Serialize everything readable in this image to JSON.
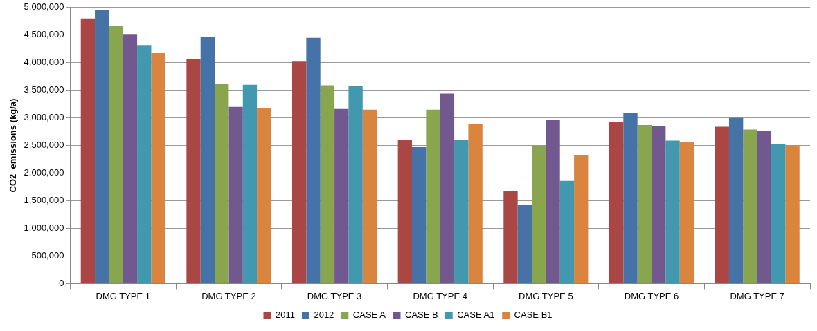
{
  "chart_data": {
    "type": "bar",
    "ylabel": "CO2  emissions (kg/a)",
    "categories": [
      "DMG TYPE 1",
      "DMG TYPE 2",
      "DMG TYPE 3",
      "DMG TYPE 4",
      "DMG TYPE 5",
      "DMG TYPE 6",
      "DMG TYPE 7"
    ],
    "series": [
      {
        "name": "2011",
        "color": "#aa4643",
        "values": [
          4800000,
          4060000,
          4030000,
          2600000,
          1670000,
          2930000,
          2840000
        ]
      },
      {
        "name": "2012",
        "color": "#4572a7",
        "values": [
          4950000,
          4460000,
          4450000,
          2470000,
          1420000,
          3090000,
          3000000
        ]
      },
      {
        "name": "CASE A",
        "color": "#89a54e",
        "values": [
          4660000,
          3620000,
          3590000,
          3150000,
          2490000,
          2870000,
          2790000
        ]
      },
      {
        "name": "CASE B",
        "color": "#71588f",
        "values": [
          4520000,
          3200000,
          3160000,
          3440000,
          2960000,
          2850000,
          2760000
        ]
      },
      {
        "name": "CASE A1",
        "color": "#4198af",
        "values": [
          4320000,
          3600000,
          3580000,
          2600000,
          1860000,
          2590000,
          2520000
        ]
      },
      {
        "name": "CASE B1",
        "color": "#db843d",
        "values": [
          4180000,
          3180000,
          3150000,
          2890000,
          2330000,
          2570000,
          2500000
        ]
      }
    ],
    "ylim": [
      0,
      5000000
    ],
    "yticks": [
      0,
      {
        "value": 500000,
        "label": "500,000"
      },
      {
        "value": 1000000,
        "label": "1,000,000"
      },
      {
        "value": 1500000,
        "label": "1,500,000"
      },
      {
        "value": 2000000,
        "label": "2,000,000"
      },
      {
        "value": 2500000,
        "label": "2,500,000"
      },
      {
        "value": 3000000,
        "label": "3,000,000"
      },
      {
        "value": 3500000,
        "label": "3,500,000"
      },
      {
        "value": 4000000,
        "label": "4,000,000"
      },
      {
        "value": 4500000,
        "label": "4,500,000"
      },
      {
        "value": 5000000,
        "label": "5,000,000"
      }
    ],
    "grid": "y",
    "legend": "bottom"
  }
}
